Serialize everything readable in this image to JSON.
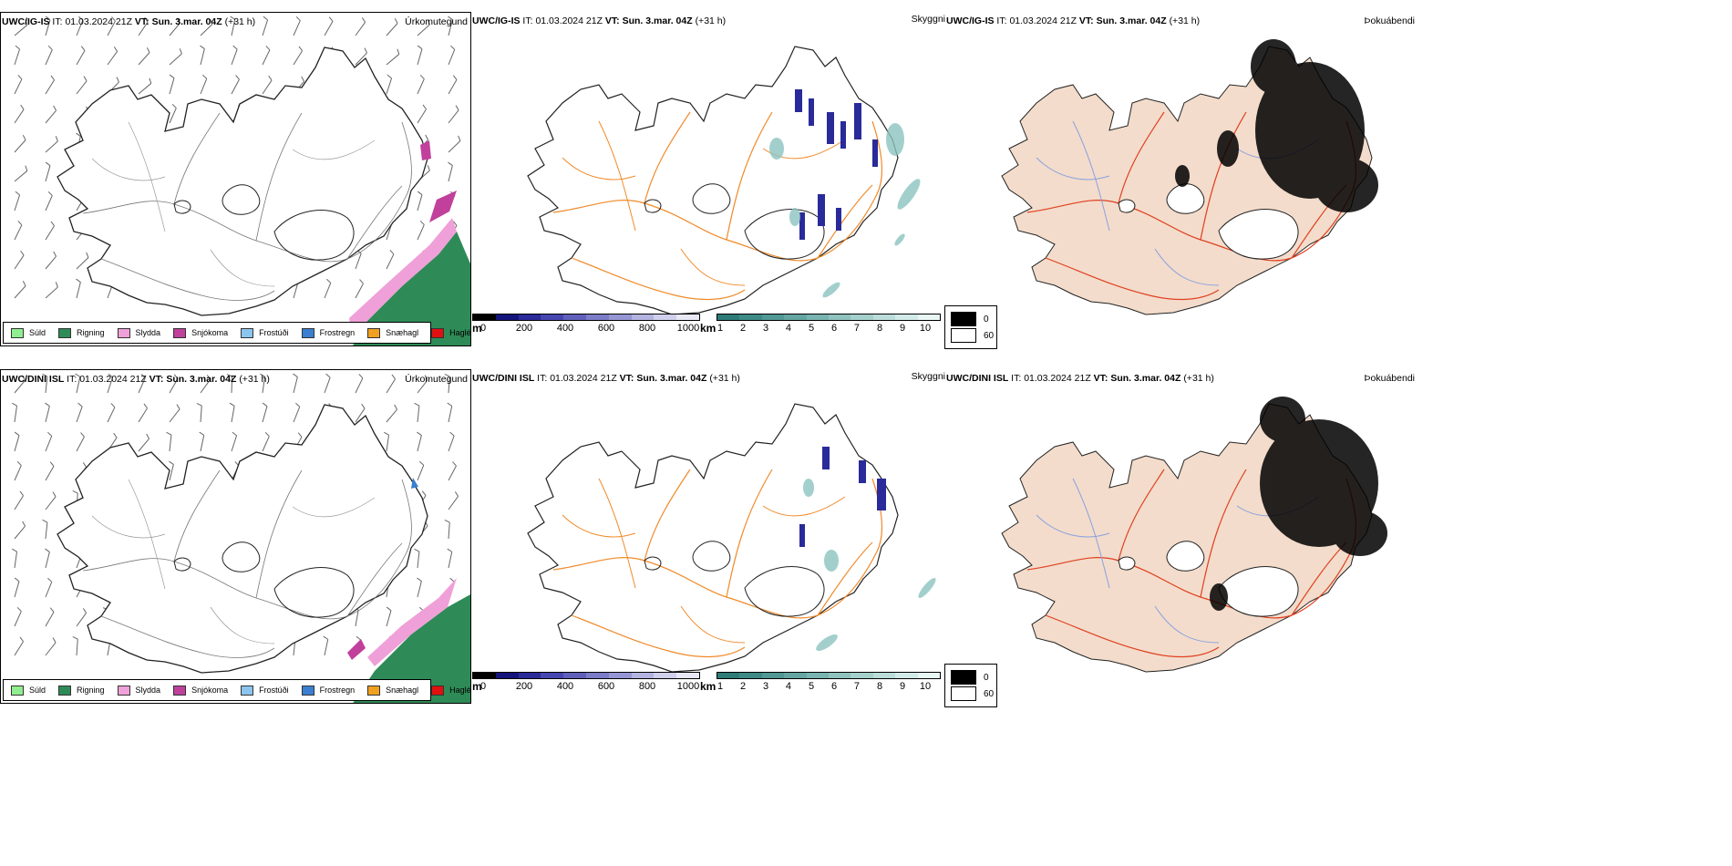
{
  "rows": [
    {
      "model": "UWC/IG-IS",
      "it_label": "IT:",
      "it_value": "01.03.2024 21Z",
      "vt_label": "VT:",
      "vt_value": "Sun. 3.mar. 04Z",
      "lead": "(+31 h)",
      "titles": [
        "Úrkomutegund",
        "Skyggni",
        "Þokuábendi"
      ]
    },
    {
      "model": "UWC/DINI ISL",
      "it_label": "IT:",
      "it_value": "01.03.2024 21Z",
      "vt_label": "VT:",
      "vt_value": "Sun. 3.mar. 04Z",
      "lead": "(+31 h)",
      "titles": [
        "Úrkomutegund",
        "Skyggni",
        "Þokuábendi"
      ]
    }
  ],
  "precip_legend": [
    {
      "label": "Súld",
      "color": "#90ee90"
    },
    {
      "label": "Rigning",
      "color": "#2e8b57"
    },
    {
      "label": "Slydda",
      "color": "#f0a0d8"
    },
    {
      "label": "Snjókoma",
      "color": "#c0409c"
    },
    {
      "label": "Frostúði",
      "color": "#8cc4f0"
    },
    {
      "label": "Frostregn",
      "color": "#3a7fd0"
    },
    {
      "label": "Snæhagl",
      "color": "#f0a020"
    },
    {
      "label": "Haglél",
      "color": "#e01010"
    }
  ],
  "visibility_m": {
    "unit": "m",
    "ticks": [
      "0",
      "200",
      "400",
      "600",
      "800",
      "1000"
    ],
    "colors": [
      "#000000",
      "#14147a",
      "#2a2a9a",
      "#4646b0",
      "#6060bc",
      "#7c7cc8",
      "#9696d4",
      "#b4b4e0",
      "#d0d0ec",
      "#e8e8f6"
    ]
  },
  "visibility_km": {
    "unit": "km",
    "ticks": [
      "1",
      "2",
      "3",
      "4",
      "5",
      "6",
      "7",
      "8",
      "9",
      "10"
    ],
    "colors": [
      "#2e7b78",
      "#3e8a86",
      "#529894",
      "#66a6a2",
      "#7ab4b0",
      "#90c2be",
      "#a6d0cc",
      "#bcdeda",
      "#d2ebe8",
      "#e8f6f4"
    ]
  },
  "fog_legend": [
    {
      "label": "0",
      "color": "#000000"
    },
    {
      "label": "60",
      "color": "#ffffff"
    }
  ],
  "colors": {
    "roads": "#f08a2a",
    "roads_red": "#e04020",
    "land_fog": "#f3dccb",
    "rain": "#2e8b57",
    "sleet": "#f0a0d8",
    "snow": "#c0409c",
    "vis_blue": "#2a2a9a",
    "vis_teal": "#8cc4c0"
  }
}
